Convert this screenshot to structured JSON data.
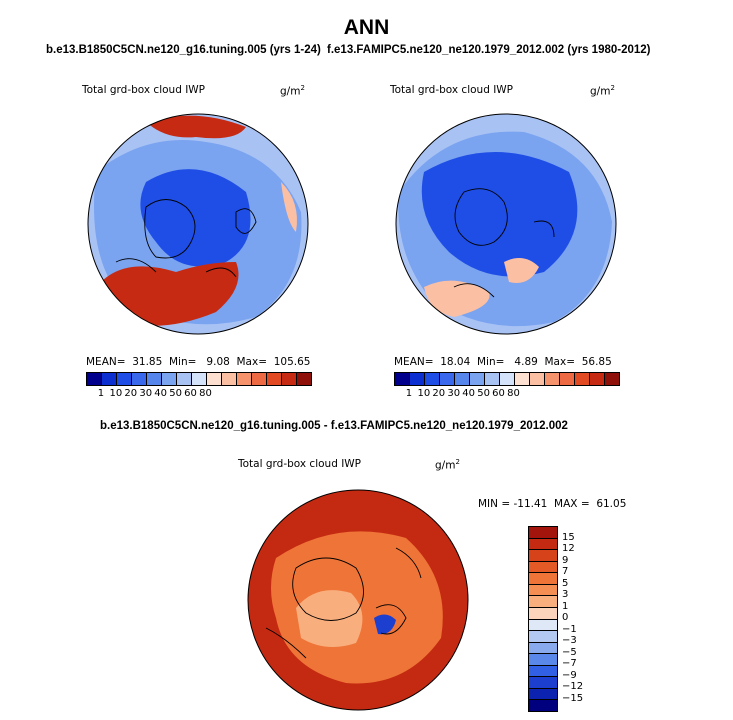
{
  "title": "ANN",
  "panels": [
    {
      "run_label": "b.e13.B1850C5CN.ne120_g16.tuning.005 (yrs 1-24)",
      "variable": "Total grd-box cloud IWP",
      "units": "g/m",
      "units_exp": "2",
      "mean_label": "MEAN=",
      "mean": "31.85",
      "min_label": "Min=",
      "min": "9.08",
      "max_label": "Max=",
      "max": "105.65"
    },
    {
      "run_label": "f.e13.FAMIPC5.ne120_ne120.1979_2012.002 (yrs 1980-2012)",
      "variable": "Total grd-box cloud IWP",
      "units": "g/m",
      "units_exp": "2",
      "mean_label": "MEAN=",
      "mean": "18.04",
      "min_label": "Min=",
      "min": "4.89",
      "max_label": "Max=",
      "max": "56.85"
    }
  ],
  "diff": {
    "run_label": "b.e13.B1850C5CN.ne120_g16.tuning.005 - f.e13.FAMIPC5.ne120_ne120.1979_2012.002",
    "variable": "Total grd-box cloud IWP",
    "units": "g/m",
    "units_exp": "2",
    "min_label": "MIN =",
    "min": "-11.41",
    "max_label": "MAX =",
    "max": "61.05"
  },
  "colorbar_abs": {
    "labels": [
      "1",
      "10",
      "20",
      "30",
      "40",
      "50",
      "60",
      "80"
    ],
    "colors": [
      "#00008c",
      "#0b2fd0",
      "#1f4ee6",
      "#3a68ec",
      "#5686ec",
      "#7aa3f0",
      "#a8c2f4",
      "#d4e2fa",
      "#fde0d0",
      "#fbbfa3",
      "#f7936c",
      "#ee6a45",
      "#e14a23",
      "#c62a12",
      "#8f0f0a"
    ]
  },
  "colorbar_diff": {
    "labels": [
      "15",
      "12",
      "9",
      "7",
      "5",
      "3",
      "1",
      "0",
      "−1",
      "−3",
      "−5",
      "−7",
      "−9",
      "−12",
      "−15"
    ],
    "colors": [
      "#a3140c",
      "#c42a12",
      "#d6421a",
      "#e45a26",
      "#ef7437",
      "#f58e52",
      "#f9ae7e",
      "#fcd4bb",
      "#dfe8f7",
      "#b3c9f2",
      "#8aaaee",
      "#5a87ea",
      "#3260e4",
      "#1d3fd0",
      "#0b23b0",
      "#00007e"
    ]
  },
  "map_colors": {
    "abs_base": "#7aa3f0",
    "abs_ring": "#a8c2f4",
    "abs_core": "#1f4ee6",
    "abs_hot": "#c62a12",
    "diff_base": "#c42a12",
    "diff_mid": "#ef7437",
    "diff_low": "#f9ae7e",
    "diff_neg": "#1d3fd0"
  }
}
